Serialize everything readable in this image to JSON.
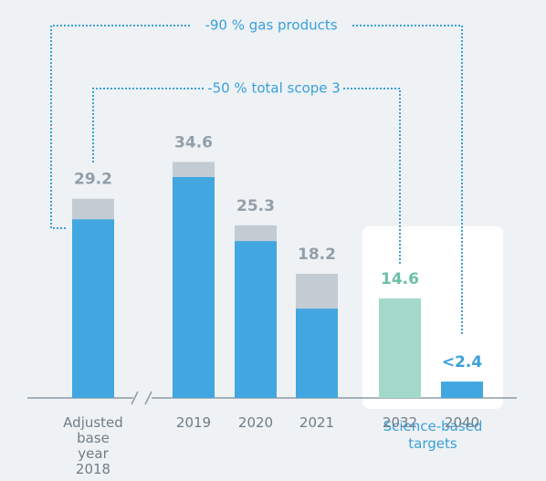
{
  "chart_data": {
    "type": "stacked_bar",
    "categories": [
      "Adjusted base year 2018",
      "2019",
      "2020",
      "2021",
      "2032",
      "2040"
    ],
    "series": [
      {
        "color": "#42a6e0",
        "values": [
          26.2,
          32.4,
          23.0,
          13.1,
          null,
          2.4
        ]
      },
      {
        "color": "#c3ccd3",
        "values": [
          3.0,
          2.2,
          2.3,
          5.1,
          null,
          null
        ]
      },
      {
        "color": "#a4d9ca",
        "values": [
          null,
          null,
          null,
          null,
          14.6,
          null
        ]
      }
    ],
    "totals": [
      29.2,
      34.6,
      25.3,
      18.2,
      14.6,
      2.4
    ],
    "total_value_labels": [
      "29.2",
      "34.6",
      "25.3",
      "18.2",
      "14.6",
      "<2.4"
    ],
    "label_colors": [
      "#929fa9",
      "#929fa9",
      "#929fa9",
      "#929fa9",
      "#6cc0a8",
      "#3a9fdc"
    ],
    "ylim": [
      0,
      40
    ],
    "annotations": [
      "-90 % gas products",
      "-50 % total scope 3",
      "Science-based targets"
    ]
  }
}
